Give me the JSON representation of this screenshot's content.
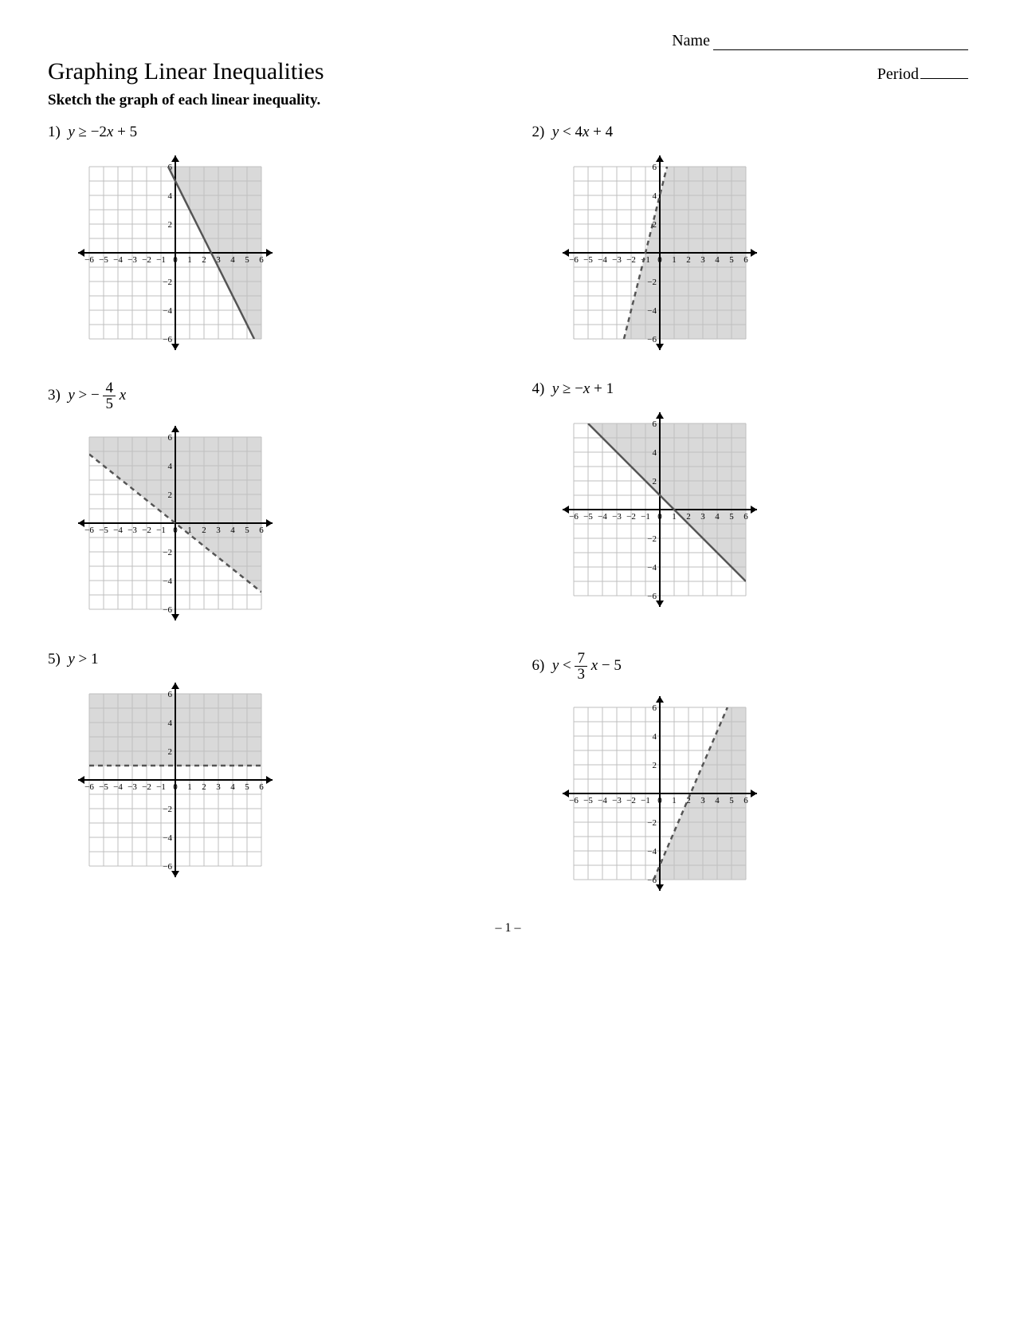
{
  "header": {
    "name_label": "Name",
    "period_label": "Period"
  },
  "title": "Graphing Linear Inequalities",
  "instruction": "Sketch the graph of each linear inequality.",
  "footer": "– 1 –",
  "axis": {
    "xmin": -6,
    "xmax": 6,
    "ymin": -6,
    "ymax": 6,
    "xticks": [
      -6,
      -5,
      -4,
      -3,
      -2,
      -1,
      0,
      1,
      2,
      3,
      4,
      5,
      6
    ],
    "yticks": [
      -6,
      -4,
      -2,
      2,
      4,
      6
    ],
    "grid_color": "#bfbfbf",
    "axis_color": "#000000",
    "shade_color": "#d9d9d9",
    "tick_fontsize": 11
  },
  "problems": [
    {
      "num": "1)",
      "expr_html": "<i>y</i> ≥ −2<i>x</i> + 5",
      "line": {
        "m": -2,
        "b": 5,
        "dashed": false
      },
      "shade_above": true
    },
    {
      "num": "2)",
      "expr_html": "<i>y</i> < 4<i>x</i> + 4",
      "line": {
        "m": 4,
        "b": 4,
        "dashed": true
      },
      "shade_above": false
    },
    {
      "num": "3)",
      "expr_html": "<i>y</i> > − <span class='frac'><span class='n'>4</span><span class='d'>5</span></span> <i>x</i>",
      "line": {
        "m": -0.8,
        "b": 0,
        "dashed": true
      },
      "shade_above": true
    },
    {
      "num": "4)",
      "expr_html": "<i>y</i> ≥ −<i>x</i> + 1",
      "line": {
        "m": -1,
        "b": 1,
        "dashed": false
      },
      "shade_above": true
    },
    {
      "num": "5)",
      "expr_html": "<i>y</i> > 1",
      "line": {
        "m": 0,
        "b": 1,
        "dashed": true
      },
      "shade_above": true
    },
    {
      "num": "6)",
      "expr_html": "<i>y</i> < <span class='frac'><span class='n'>7</span><span class='d'>3</span></span> <i>x</i> − 5",
      "line": {
        "m": 2.3333,
        "b": -5,
        "dashed": true
      },
      "shade_above": false
    }
  ]
}
